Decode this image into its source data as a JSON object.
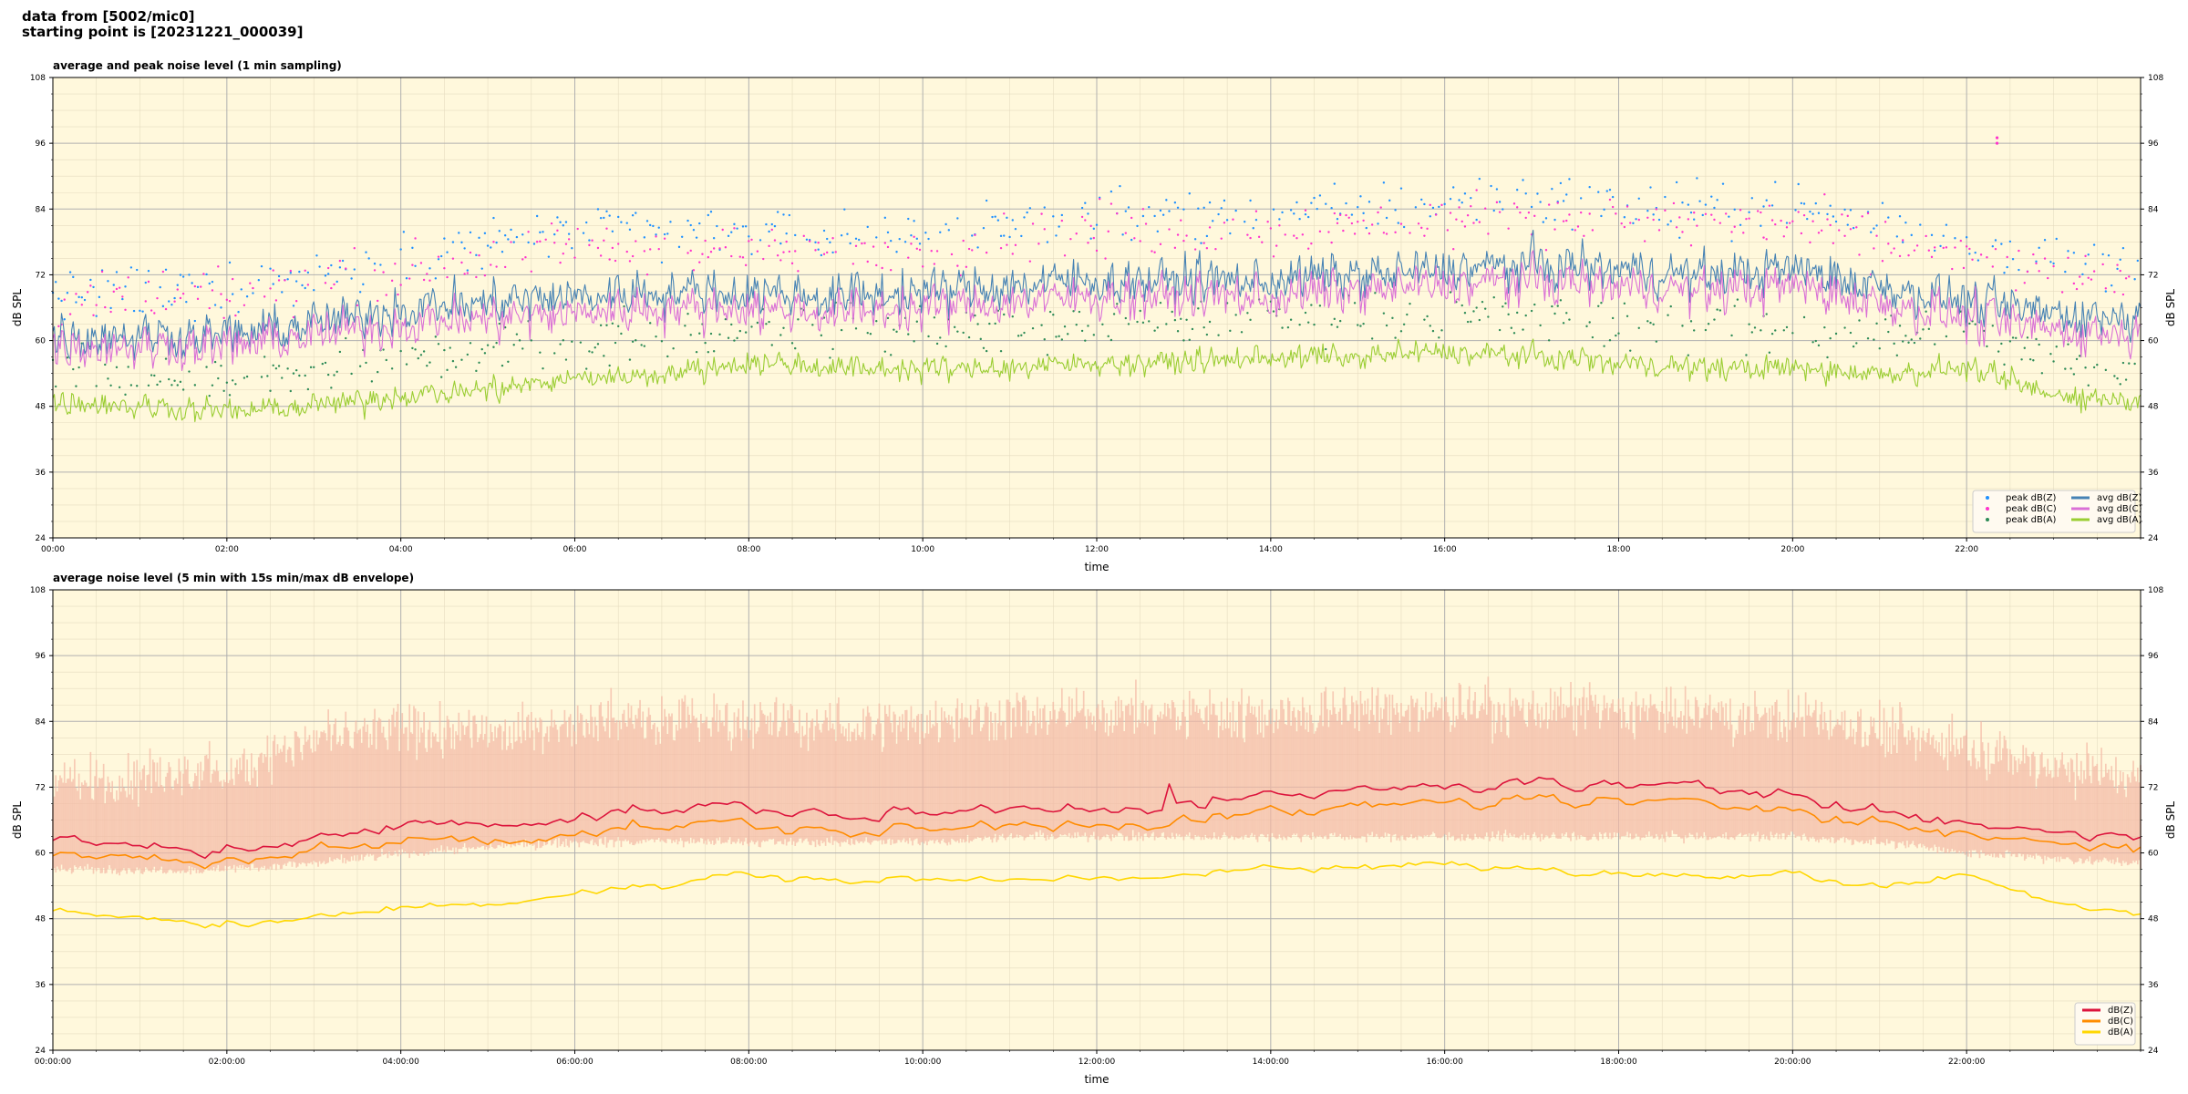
{
  "header": {
    "line1": "data from [5002/mic0]",
    "line2": "starting point is [20231221_000039]"
  },
  "chart_data": [
    {
      "type": "line",
      "title": "average and peak noise level (1 min sampling)",
      "xlabel": "time",
      "ylabel": "dB SPL",
      "ylim": [
        24,
        108
      ],
      "yticks": [
        24,
        36,
        48,
        60,
        72,
        84,
        96,
        108
      ],
      "xlim_hours": [
        0,
        24
      ],
      "xticks": [
        "00:00",
        "02:00",
        "04:00",
        "06:00",
        "08:00",
        "10:00",
        "12:00",
        "14:00",
        "16:00",
        "18:00",
        "20:00",
        "22:00"
      ],
      "grid": true,
      "legend_placement": "bottom-right",
      "legend": [
        {
          "label": "peak dB(Z)",
          "kind": "dot",
          "color": "#1e90ff"
        },
        {
          "label": "peak dB(C)",
          "kind": "dot",
          "color": "#ff33cc"
        },
        {
          "label": "peak dB(A)",
          "kind": "dot",
          "color": "#2e8b57"
        },
        {
          "label": "avg dB(Z)",
          "kind": "line",
          "color": "#4682b4"
        },
        {
          "label": "avg dB(C)",
          "kind": "line",
          "color": "#da70d6"
        },
        {
          "label": "avg dB(A)",
          "kind": "line",
          "color": "#9acd32"
        }
      ],
      "series": [
        {
          "name": "avg dB(Z)",
          "kind": "line",
          "color": "#4682b4",
          "x_hours": [
            0,
            1,
            2,
            3,
            4,
            5,
            6,
            7,
            8,
            9,
            10,
            11,
            12,
            13,
            14,
            15,
            16,
            17,
            18,
            19,
            20,
            21,
            22,
            23,
            24
          ],
          "values": [
            61,
            61,
            61,
            63,
            66,
            67,
            68,
            69,
            69,
            68,
            69,
            70,
            71,
            71,
            71,
            72,
            73,
            74,
            73,
            72,
            73,
            70,
            67,
            65,
            64
          ]
        },
        {
          "name": "avg dB(C)",
          "kind": "line",
          "color": "#da70d6",
          "x_hours": [
            0,
            1,
            2,
            3,
            4,
            5,
            6,
            7,
            8,
            9,
            10,
            11,
            12,
            13,
            14,
            15,
            16,
            17,
            18,
            19,
            20,
            21,
            22,
            23,
            24
          ],
          "values": [
            59,
            59,
            59,
            61,
            63,
            64,
            65,
            66,
            66,
            65,
            66,
            67,
            68,
            68,
            68,
            69,
            70,
            71,
            70,
            69,
            70,
            67,
            64,
            62,
            61
          ]
        },
        {
          "name": "avg dB(A)",
          "kind": "line",
          "color": "#9acd32",
          "x_hours": [
            0,
            1,
            2,
            3,
            4,
            5,
            6,
            7,
            8,
            9,
            10,
            11,
            12,
            13,
            14,
            15,
            16,
            17,
            18,
            19,
            20,
            21,
            22,
            23,
            24
          ],
          "values": [
            49,
            48,
            47,
            48,
            50,
            51,
            53,
            54,
            56,
            55,
            55,
            55,
            56,
            56,
            57,
            57,
            58,
            57,
            56,
            55,
            55,
            54,
            55,
            50,
            49
          ]
        },
        {
          "name": "peak dB(Z)",
          "kind": "scatter",
          "color": "#1e90ff",
          "x_hours": [
            0,
            1,
            2,
            3,
            4,
            5,
            6,
            7,
            8,
            9,
            10,
            11,
            12,
            13,
            14,
            15,
            16,
            17,
            18,
            19,
            20,
            21,
            22,
            23,
            24
          ],
          "values": [
            69,
            69,
            70,
            72,
            76,
            78,
            80,
            80,
            80,
            79,
            80,
            81,
            83,
            83,
            83,
            84,
            85,
            86,
            85,
            84,
            85,
            81,
            78,
            75,
            73
          ]
        },
        {
          "name": "peak dB(C)",
          "kind": "scatter",
          "color": "#ff33cc",
          "x_hours": [
            0,
            1,
            2,
            3,
            4,
            5,
            6,
            7,
            8,
            9,
            10,
            11,
            12,
            13,
            14,
            15,
            16,
            17,
            18,
            19,
            20,
            21,
            22,
            23,
            24
          ],
          "values": [
            67,
            67,
            68,
            70,
            73,
            75,
            77,
            77,
            77,
            76,
            77,
            78,
            80,
            80,
            80,
            81,
            82,
            83,
            82,
            81,
            82,
            78,
            75,
            72,
            70
          ]
        },
        {
          "name": "peak dB(A)",
          "kind": "scatter",
          "color": "#2e8b57",
          "x_hours": [
            0,
            1,
            2,
            3,
            4,
            5,
            6,
            7,
            8,
            9,
            10,
            11,
            12,
            13,
            14,
            15,
            16,
            17,
            18,
            19,
            20,
            21,
            22,
            23,
            24
          ],
          "values": [
            55,
            54,
            53,
            54,
            57,
            58,
            60,
            61,
            63,
            62,
            62,
            62,
            63,
            63,
            64,
            64,
            65,
            64,
            63,
            62,
            62,
            61,
            62,
            56,
            55
          ]
        }
      ],
      "annotations": [
        {
          "x_hours": 22.35,
          "values": [
            97,
            96
          ],
          "color": "#ff33cc"
        }
      ]
    },
    {
      "type": "line",
      "title": "average noise level (5 min with 15s min/max dB envelope)",
      "xlabel": "time",
      "ylabel": "dB SPL",
      "ylim": [
        24,
        108
      ],
      "yticks": [
        24,
        36,
        48,
        60,
        72,
        84,
        96,
        108
      ],
      "xlim_hours": [
        0,
        24
      ],
      "xticks": [
        "00:00:00",
        "02:00:00",
        "04:00:00",
        "06:00:00",
        "08:00:00",
        "10:00:00",
        "12:00:00",
        "14:00:00",
        "16:00:00",
        "18:00:00",
        "20:00:00",
        "22:00:00"
      ],
      "grid": true,
      "legend_placement": "bottom-right",
      "legend": [
        {
          "label": "dB(Z)",
          "kind": "line",
          "color": "#dc143c"
        },
        {
          "label": "dB(C)",
          "kind": "line",
          "color": "#ff8c00"
        },
        {
          "label": "dB(A)",
          "kind": "line",
          "color": "#ffd700"
        }
      ],
      "envelope": {
        "color": "#f4b8a4",
        "x_hours": [
          0,
          1,
          2,
          3,
          4,
          5,
          6,
          7,
          8,
          9,
          10,
          11,
          12,
          13,
          14,
          15,
          16,
          17,
          18,
          19,
          20,
          21,
          22,
          23,
          24
        ],
        "min": [
          57,
          57,
          57,
          58,
          60,
          61,
          62,
          62,
          62,
          62,
          62,
          63,
          63,
          63,
          63,
          63,
          63,
          63,
          63,
          63,
          63,
          62,
          60,
          59,
          58
        ],
        "max": [
          75,
          75,
          77,
          83,
          84,
          84,
          86,
          87,
          86,
          85,
          86,
          87,
          88,
          87,
          87,
          88,
          88,
          88,
          88,
          87,
          87,
          84,
          82,
          78,
          76
        ]
      },
      "series": [
        {
          "name": "dB(Z)",
          "kind": "line",
          "color": "#dc143c",
          "x_hours": [
            0,
            1,
            2,
            3,
            4,
            5,
            6,
            7,
            8,
            9,
            10,
            11,
            12,
            13,
            14,
            15,
            16,
            17,
            18,
            19,
            20,
            21,
            22,
            23,
            24
          ],
          "values": [
            62,
            61,
            61,
            62,
            65,
            66,
            67,
            68,
            68,
            67,
            67,
            68,
            69,
            69,
            70,
            71,
            72,
            73,
            72,
            71,
            72,
            68,
            65,
            64,
            63
          ]
        },
        {
          "name": "dB(C)",
          "kind": "line",
          "color": "#ff8c00",
          "x_hours": [
            0,
            1,
            2,
            3,
            4,
            5,
            6,
            7,
            8,
            9,
            10,
            11,
            12,
            13,
            14,
            15,
            16,
            17,
            18,
            19,
            20,
            21,
            22,
            23,
            24
          ],
          "values": [
            59,
            59,
            59,
            60,
            62,
            63,
            64,
            65,
            65,
            64,
            64,
            65,
            66,
            66,
            67,
            68,
            69,
            70,
            69,
            68,
            69,
            66,
            63,
            62,
            61
          ]
        },
        {
          "name": "dB(A)",
          "kind": "line",
          "color": "#ffd700",
          "x_hours": [
            0,
            1,
            2,
            3,
            4,
            5,
            6,
            7,
            8,
            9,
            10,
            11,
            12,
            13,
            14,
            15,
            16,
            17,
            18,
            19,
            20,
            21,
            22,
            23,
            24
          ],
          "values": [
            49,
            48,
            47,
            48,
            50,
            51,
            53,
            54,
            56,
            55,
            55,
            55,
            56,
            56,
            57,
            57,
            58,
            57,
            56,
            55,
            57,
            54,
            56,
            51,
            49
          ]
        }
      ]
    }
  ]
}
